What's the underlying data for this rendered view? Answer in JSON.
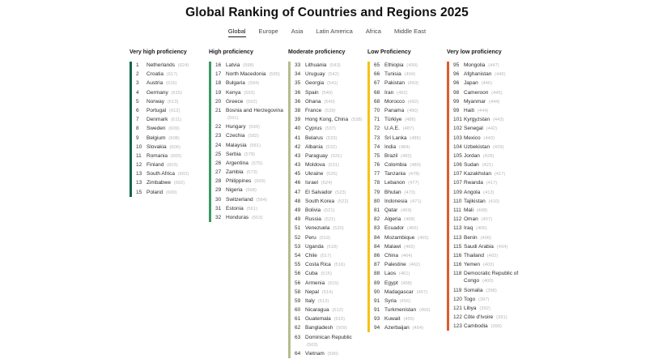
{
  "title": "Global Ranking of Countries and Regions 2025",
  "tabs": [
    {
      "label": "Global",
      "active": true
    },
    {
      "label": "Europe",
      "active": false
    },
    {
      "label": "Asia",
      "active": false
    },
    {
      "label": "Latin America",
      "active": false
    },
    {
      "label": "Africa",
      "active": false
    },
    {
      "label": "Middle East",
      "active": false
    }
  ],
  "columns": [
    {
      "heading": "Very high proficiency",
      "color": "#10654d",
      "items": [
        {
          "rank": "1",
          "name": "Netherlands",
          "score": "624"
        },
        {
          "rank": "2",
          "name": "Croatia",
          "score": "617"
        },
        {
          "rank": "3",
          "name": "Austria",
          "score": "616"
        },
        {
          "rank": "4",
          "name": "Germany",
          "score": "615"
        },
        {
          "rank": "5",
          "name": "Norway",
          "score": "613"
        },
        {
          "rank": "6",
          "name": "Portugal",
          "score": "612"
        },
        {
          "rank": "7",
          "name": "Denmark",
          "score": "611"
        },
        {
          "rank": "8",
          "name": "Sweden",
          "score": "609"
        },
        {
          "rank": "9",
          "name": "Belgium",
          "score": "608"
        },
        {
          "rank": "10",
          "name": "Slovakia",
          "score": "606"
        },
        {
          "rank": "11",
          "name": "Romania",
          "score": "605"
        },
        {
          "rank": "12",
          "name": "Finland",
          "score": "603"
        },
        {
          "rank": "13",
          "name": "South Africa",
          "score": "602"
        },
        {
          "rank": "13",
          "name": "Zimbabwe",
          "score": "602"
        },
        {
          "rank": "15",
          "name": "Poland",
          "score": "600"
        }
      ]
    },
    {
      "heading": "High proficiency",
      "color": "#3c9a63",
      "items": [
        {
          "rank": "16",
          "name": "Latvia",
          "score": "598"
        },
        {
          "rank": "17",
          "name": "North Macedonia",
          "score": "595"
        },
        {
          "rank": "18",
          "name": "Bulgaria",
          "score": "594"
        },
        {
          "rank": "19",
          "name": "Kenya",
          "score": "593"
        },
        {
          "rank": "20",
          "name": "Greece",
          "score": "592"
        },
        {
          "rank": "21",
          "name": "Bosnia and Herzegovina",
          "score": "591"
        },
        {
          "rank": "22",
          "name": "Hungary",
          "score": "590"
        },
        {
          "rank": "23",
          "name": "Czechia",
          "score": "582"
        },
        {
          "rank": "24",
          "name": "Malaysia",
          "score": "581"
        },
        {
          "rank": "25",
          "name": "Serbia",
          "score": "578"
        },
        {
          "rank": "26",
          "name": "Argentina",
          "score": "575"
        },
        {
          "rank": "27",
          "name": "Zambia",
          "score": "573"
        },
        {
          "rank": "28",
          "name": "Philippines",
          "score": "569"
        },
        {
          "rank": "29",
          "name": "Nigeria",
          "score": "568"
        },
        {
          "rank": "30",
          "name": "Switzerland",
          "score": "564"
        },
        {
          "rank": "31",
          "name": "Estonia",
          "score": "561"
        },
        {
          "rank": "32",
          "name": "Honduras",
          "score": "553"
        }
      ]
    },
    {
      "heading": "Moderate proficiency",
      "color": "#b7bc8e",
      "items": [
        {
          "rank": "33",
          "name": "Lithuania",
          "score": "543"
        },
        {
          "rank": "34",
          "name": "Uruguay",
          "score": "542"
        },
        {
          "rank": "35",
          "name": "Georgia",
          "score": "541"
        },
        {
          "rank": "36",
          "name": "Spain",
          "score": "540"
        },
        {
          "rank": "36",
          "name": "Ghana",
          "score": "540"
        },
        {
          "rank": "38",
          "name": "France",
          "score": "539"
        },
        {
          "rank": "39",
          "name": "Hong Kong, China",
          "score": "538"
        },
        {
          "rank": "40",
          "name": "Cyprus",
          "score": "537"
        },
        {
          "rank": "41",
          "name": "Belarus",
          "score": "533"
        },
        {
          "rank": "42",
          "name": "Albania",
          "score": "532"
        },
        {
          "rank": "43",
          "name": "Paraguay",
          "score": "531"
        },
        {
          "rank": "43",
          "name": "Moldova",
          "score": "531"
        },
        {
          "rank": "45",
          "name": "Ukraine",
          "score": "526"
        },
        {
          "rank": "46",
          "name": "Israel",
          "score": "524"
        },
        {
          "rank": "47",
          "name": "El Salvador",
          "score": "523"
        },
        {
          "rank": "48",
          "name": "South Korea",
          "score": "522"
        },
        {
          "rank": "49",
          "name": "Bolivia",
          "score": "521"
        },
        {
          "rank": "49",
          "name": "Russia",
          "score": "521"
        },
        {
          "rank": "51",
          "name": "Venezuela",
          "score": "520"
        },
        {
          "rank": "52",
          "name": "Peru",
          "score": "519"
        },
        {
          "rank": "53",
          "name": "Uganda",
          "score": "518"
        },
        {
          "rank": "54",
          "name": "Chile",
          "score": "517"
        },
        {
          "rank": "55",
          "name": "Costa Rica",
          "score": "516"
        },
        {
          "rank": "56",
          "name": "Cuba",
          "score": "515"
        },
        {
          "rank": "56",
          "name": "Armenia",
          "score": "515"
        },
        {
          "rank": "58",
          "name": "Nepal",
          "score": "514"
        },
        {
          "rank": "59",
          "name": "Italy",
          "score": "513"
        },
        {
          "rank": "60",
          "name": "Nicaragua",
          "score": "512"
        },
        {
          "rank": "61",
          "name": "Guatemala",
          "score": "510"
        },
        {
          "rank": "62",
          "name": "Bangladesh",
          "score": "509"
        },
        {
          "rank": "63",
          "name": "Dominican Republic",
          "score": "503"
        },
        {
          "rank": "64",
          "name": "Vietnam",
          "score": "500"
        }
      ]
    },
    {
      "heading": "Low Proficiency",
      "color": "#f2c318",
      "items": [
        {
          "rank": "65",
          "name": "Ethiopia",
          "score": "499"
        },
        {
          "rank": "66",
          "name": "Tunisia",
          "score": "494"
        },
        {
          "rank": "67",
          "name": "Pakistan",
          "score": "493"
        },
        {
          "rank": "68",
          "name": "Iran",
          "score": "492"
        },
        {
          "rank": "68",
          "name": "Morocco",
          "score": "492"
        },
        {
          "rank": "70",
          "name": "Panama",
          "score": "490"
        },
        {
          "rank": "71",
          "name": "Türkiye",
          "score": "488"
        },
        {
          "rank": "72",
          "name": "U.A.E.",
          "score": "487"
        },
        {
          "rank": "73",
          "name": "Sri Lanka",
          "score": "486"
        },
        {
          "rank": "74",
          "name": "India",
          "score": "484"
        },
        {
          "rank": "75",
          "name": "Brazil",
          "score": "482"
        },
        {
          "rank": "76",
          "name": "Colombia",
          "score": "480"
        },
        {
          "rank": "77",
          "name": "Tanzania",
          "score": "478"
        },
        {
          "rank": "78",
          "name": "Lebanon",
          "score": "477"
        },
        {
          "rank": "79",
          "name": "Bhutan",
          "score": "473"
        },
        {
          "rank": "80",
          "name": "Indonesia",
          "score": "471"
        },
        {
          "rank": "81",
          "name": "Qatar",
          "score": "469"
        },
        {
          "rank": "82",
          "name": "Algeria",
          "score": "468"
        },
        {
          "rank": "83",
          "name": "Ecuador",
          "score": "466"
        },
        {
          "rank": "84",
          "name": "Mozambique",
          "score": "465"
        },
        {
          "rank": "84",
          "name": "Malawi",
          "score": "465"
        },
        {
          "rank": "86",
          "name": "China",
          "score": "464"
        },
        {
          "rank": "87",
          "name": "Palestine",
          "score": "462"
        },
        {
          "rank": "88",
          "name": "Laos",
          "score": "461"
        },
        {
          "rank": "89",
          "name": "Egypt",
          "score": "458"
        },
        {
          "rank": "90",
          "name": "Madagascar",
          "score": "457"
        },
        {
          "rank": "91",
          "name": "Syria",
          "score": "456"
        },
        {
          "rank": "91",
          "name": "Turkmenistan",
          "score": "456"
        },
        {
          "rank": "93",
          "name": "Kuwait",
          "score": "455"
        },
        {
          "rank": "94",
          "name": "Azerbaijan",
          "score": "454"
        }
      ]
    },
    {
      "heading": "Very low proficiency",
      "color": "#e25a2c",
      "items": [
        {
          "rank": "95",
          "name": "Mongolia",
          "score": "447"
        },
        {
          "rank": "96",
          "name": "Afghanistan",
          "score": "446"
        },
        {
          "rank": "96",
          "name": "Japan",
          "score": "446"
        },
        {
          "rank": "98",
          "name": "Cameroon",
          "score": "445"
        },
        {
          "rank": "99",
          "name": "Myanmar",
          "score": "444"
        },
        {
          "rank": "99",
          "name": "Haiti",
          "score": "444"
        },
        {
          "rank": "101",
          "name": "Kyrgyzstan",
          "score": "443"
        },
        {
          "rank": "102",
          "name": "Senegal",
          "score": "442"
        },
        {
          "rank": "103",
          "name": "Mexico",
          "score": "440"
        },
        {
          "rank": "104",
          "name": "Uzbekistan",
          "score": "429"
        },
        {
          "rank": "105",
          "name": "Jordan",
          "score": "428"
        },
        {
          "rank": "106",
          "name": "Sudan",
          "score": "421"
        },
        {
          "rank": "107",
          "name": "Kazakhstan",
          "score": "417"
        },
        {
          "rank": "107",
          "name": "Rwanda",
          "score": "417"
        },
        {
          "rank": "109",
          "name": "Angola",
          "score": "413"
        },
        {
          "rank": "110",
          "name": "Tajikistan",
          "score": "410"
        },
        {
          "rank": "111",
          "name": "Mali",
          "score": "408"
        },
        {
          "rank": "112",
          "name": "Oman",
          "score": "407"
        },
        {
          "rank": "113",
          "name": "Iraq",
          "score": "406"
        },
        {
          "rank": "113",
          "name": "Benin",
          "score": "406"
        },
        {
          "rank": "115",
          "name": "Saudi Arabia",
          "score": "404"
        },
        {
          "rank": "116",
          "name": "Thailand",
          "score": "402"
        },
        {
          "rank": "116",
          "name": "Yemen",
          "score": "402"
        },
        {
          "rank": "118",
          "name": "Democratic Republic of Congo",
          "score": "400"
        },
        {
          "rank": "119",
          "name": "Somalia",
          "score": "398"
        },
        {
          "rank": "120",
          "name": "Togo",
          "score": "397"
        },
        {
          "rank": "121",
          "name": "Libya",
          "score": "392"
        },
        {
          "rank": "122",
          "name": "Côte d'Ivoire",
          "score": "391"
        },
        {
          "rank": "123",
          "name": "Cambodia",
          "score": "390"
        }
      ]
    }
  ]
}
